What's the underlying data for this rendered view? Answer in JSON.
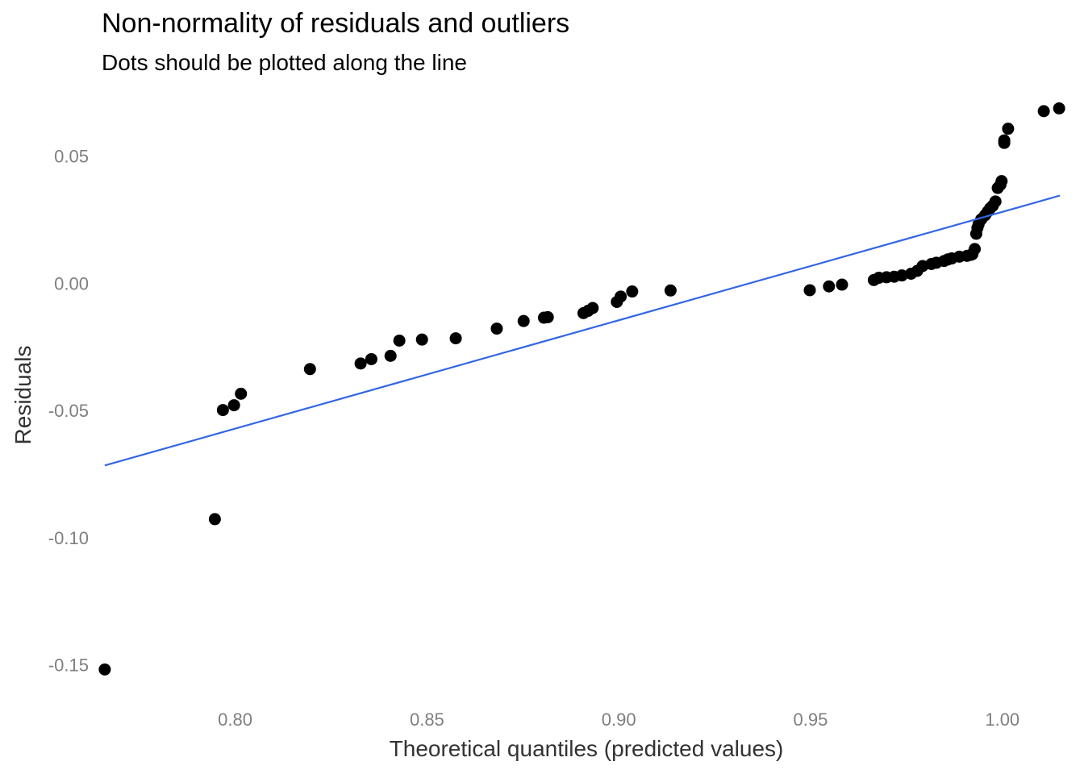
{
  "chart_data": {
    "type": "scatter",
    "title": "Non-normality of residuals and outliers",
    "subtitle": "Dots should be plotted along the line",
    "xlabel": "Theoretical quantiles (predicted values)",
    "ylabel": "Residuals",
    "xlim": [
      0.7635,
      1.0175
    ],
    "ylim": [
      -0.165,
      0.074
    ],
    "x_ticks": [
      0.8,
      0.85,
      0.9,
      0.95,
      1.0
    ],
    "x_tick_labels": [
      "0.80",
      "0.85",
      "0.90",
      "0.95",
      "1.00"
    ],
    "y_ticks": [
      0.05,
      0.0,
      -0.05,
      -0.1,
      -0.15
    ],
    "y_tick_labels": [
      "0.05",
      "0.00",
      "-0.05",
      "-0.10",
      "-0.15"
    ],
    "grid": false,
    "legend": "none",
    "colors": {
      "points": "#000000",
      "line": "#3366E6",
      "tick_text": "#7F7F7F",
      "axis_title": "#333333"
    },
    "reference_line": {
      "x": [
        0.766,
        1.015
      ],
      "y": [
        -0.0716,
        0.0345
      ]
    },
    "points": {
      "x": [
        0.766,
        0.7947,
        0.7968,
        0.7997,
        0.8015,
        0.8195,
        0.8327,
        0.8355,
        0.8405,
        0.8428,
        0.8487,
        0.8575,
        0.8682,
        0.8752,
        0.8805,
        0.8815,
        0.8908,
        0.892,
        0.8932,
        0.8995,
        0.9005,
        0.9035,
        0.9135,
        0.9498,
        0.9548,
        0.9582,
        0.9665,
        0.9678,
        0.9698,
        0.9718,
        0.9738,
        0.9762,
        0.9778,
        0.9792,
        0.9815,
        0.9828,
        0.9848,
        0.9858,
        0.9868,
        0.9888,
        0.9908,
        0.9918,
        0.9922,
        0.9928,
        0.9932,
        0.9935,
        0.9938,
        0.9945,
        0.9955,
        0.9962,
        0.9968,
        0.9975,
        0.9982,
        0.9988,
        0.9995,
        0.9998,
        1.0005,
        1.0015,
        1.0005,
        1.0108,
        1.0148
      ],
      "y": [
        -0.1518,
        -0.0927,
        -0.0498,
        -0.0479,
        -0.0434,
        -0.0337,
        -0.0315,
        -0.0298,
        -0.0285,
        -0.0225,
        -0.0221,
        -0.0216,
        -0.0178,
        -0.0148,
        -0.0135,
        -0.0133,
        -0.0117,
        -0.0108,
        -0.0097,
        -0.0073,
        -0.0052,
        -0.0032,
        -0.0028,
        -0.0027,
        -0.0012,
        -0.0005,
        0.0013,
        0.0022,
        0.0024,
        0.0026,
        0.0031,
        0.0038,
        0.0049,
        0.0068,
        0.0076,
        0.0081,
        0.0088,
        0.0094,
        0.0098,
        0.0105,
        0.0108,
        0.0112,
        0.0115,
        0.0135,
        0.0195,
        0.0218,
        0.0232,
        0.0252,
        0.0268,
        0.0282,
        0.0295,
        0.0305,
        0.0322,
        0.0375,
        0.0388,
        0.0402,
        0.0552,
        0.0608,
        0.0562,
        0.0677,
        0.0688
      ]
    }
  }
}
